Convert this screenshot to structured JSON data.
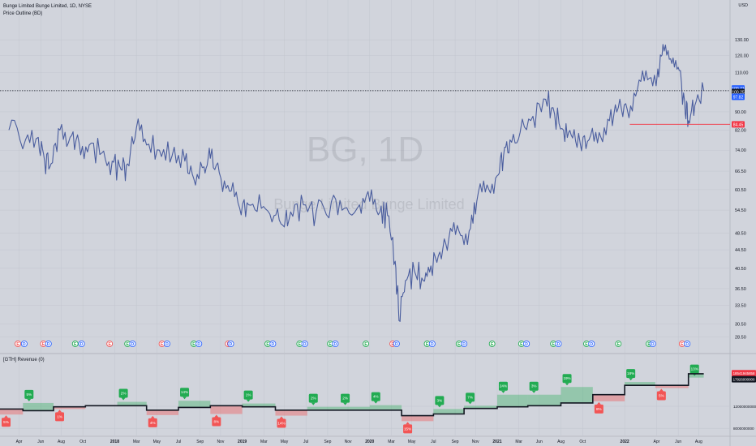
{
  "header": {
    "symbol_line": "Bunge Limited Bunge Limited, 1D, NYSE",
    "indicator_line": "Price Outline (BD)",
    "currency": "USD"
  },
  "watermark": {
    "ticker": "BG, 1D",
    "name": "Bunge Limited Bunge Limited"
  },
  "price_axis": {
    "ticks": [
      "130.00",
      "120.00",
      "110.00",
      "90.00",
      "82.00",
      "74.00",
      "66.50",
      "60.50",
      "54.50",
      "48.50",
      "44.50",
      "40.50",
      "36.50",
      "33.50",
      "30.50",
      "28.50"
    ],
    "price_tags": [
      {
        "label": "100.71",
        "color": "#2962ff",
        "kind": "price"
      },
      {
        "label": "100.25",
        "color": "#131722",
        "kind": "price"
      },
      {
        "label": "97.82",
        "color": "#2962ff",
        "kind": "price"
      },
      {
        "label": "84.45",
        "color": "#f23645",
        "kind": "price"
      }
    ]
  },
  "price_series": {
    "description": "Daily closing-price line, BG, Mar 2017 – Aug 2022",
    "points": [
      [
        2017.17,
        82
      ],
      [
        2017.3,
        78
      ],
      [
        2017.4,
        79
      ],
      [
        2017.45,
        70
      ],
      [
        2017.5,
        69
      ],
      [
        2017.57,
        82
      ],
      [
        2017.65,
        79
      ],
      [
        2017.72,
        77
      ],
      [
        2017.8,
        76
      ],
      [
        2017.9,
        73
      ],
      [
        2017.98,
        70
      ],
      [
        2018.05,
        67
      ],
      [
        2018.1,
        69
      ],
      [
        2018.17,
        83
      ],
      [
        2018.25,
        76
      ],
      [
        2018.35,
        74
      ],
      [
        2018.45,
        72
      ],
      [
        2018.55,
        70
      ],
      [
        2018.62,
        64
      ],
      [
        2018.7,
        68
      ],
      [
        2018.75,
        71
      ],
      [
        2018.82,
        66
      ],
      [
        2018.9,
        60
      ],
      [
        2018.98,
        55
      ],
      [
        2019.05,
        56
      ],
      [
        2019.15,
        55
      ],
      [
        2019.25,
        53
      ],
      [
        2019.33,
        50
      ],
      [
        2019.38,
        54
      ],
      [
        2019.48,
        56
      ],
      [
        2019.58,
        54
      ],
      [
        2019.7,
        57
      ],
      [
        2019.8,
        55
      ],
      [
        2019.92,
        56
      ],
      [
        2020.0,
        57
      ],
      [
        2020.08,
        54
      ],
      [
        2020.14,
        53
      ],
      [
        2020.2,
        42
      ],
      [
        2020.23,
        31
      ],
      [
        2020.28,
        38
      ],
      [
        2020.35,
        40
      ],
      [
        2020.42,
        38
      ],
      [
        2020.48,
        41
      ],
      [
        2020.55,
        44
      ],
      [
        2020.62,
        47
      ],
      [
        2020.7,
        49
      ],
      [
        2020.78,
        49
      ],
      [
        2020.84,
        57
      ],
      [
        2020.92,
        62
      ],
      [
        2021.0,
        65
      ],
      [
        2021.05,
        72
      ],
      [
        2021.1,
        78
      ],
      [
        2021.18,
        81
      ],
      [
        2021.28,
        88
      ],
      [
        2021.38,
        96
      ],
      [
        2021.45,
        89
      ],
      [
        2021.52,
        82
      ],
      [
        2021.58,
        80
      ],
      [
        2021.65,
        77
      ],
      [
        2021.72,
        78
      ],
      [
        2021.8,
        81
      ],
      [
        2021.88,
        86
      ],
      [
        2021.95,
        92
      ],
      [
        2022.02,
        91
      ],
      [
        2022.1,
        101
      ],
      [
        2022.18,
        106
      ],
      [
        2022.26,
        112
      ],
      [
        2022.3,
        127
      ],
      [
        2022.36,
        118
      ],
      [
        2022.42,
        113
      ],
      [
        2022.47,
        95
      ],
      [
        2022.5,
        86
      ],
      [
        2022.55,
        93
      ],
      [
        2022.62,
        100.25
      ]
    ]
  },
  "time_axis": {
    "labels": [
      {
        "t": 2017.25,
        "label": "Apr"
      },
      {
        "t": 2017.42,
        "label": "Jun"
      },
      {
        "t": 2017.58,
        "label": "Aug"
      },
      {
        "t": 2017.75,
        "label": "Oct"
      },
      {
        "t": 2018.0,
        "label": "2018",
        "bold": true
      },
      {
        "t": 2018.17,
        "label": "Mar"
      },
      {
        "t": 2018.33,
        "label": "May"
      },
      {
        "t": 2018.5,
        "label": "Jul"
      },
      {
        "t": 2018.67,
        "label": "Sep"
      },
      {
        "t": 2018.83,
        "label": "Nov"
      },
      {
        "t": 2019.0,
        "label": "2019",
        "bold": true
      },
      {
        "t": 2019.17,
        "label": "Mar"
      },
      {
        "t": 2019.33,
        "label": "May"
      },
      {
        "t": 2019.5,
        "label": "Jul"
      },
      {
        "t": 2019.67,
        "label": "Sep"
      },
      {
        "t": 2019.83,
        "label": "Nov"
      },
      {
        "t": 2020.0,
        "label": "2020",
        "bold": true
      },
      {
        "t": 2020.17,
        "label": "Mar"
      },
      {
        "t": 2020.33,
        "label": "May"
      },
      {
        "t": 2020.5,
        "label": "Jul"
      },
      {
        "t": 2020.67,
        "label": "Sep"
      },
      {
        "t": 2020.83,
        "label": "Nov"
      },
      {
        "t": 2021.0,
        "label": "2021",
        "bold": true
      },
      {
        "t": 2021.17,
        "label": "Mar"
      },
      {
        "t": 2021.33,
        "label": "Jun"
      },
      {
        "t": 2021.5,
        "label": "Aug"
      },
      {
        "t": 2021.67,
        "label": "Oct"
      },
      {
        "t": 2022.0,
        "label": "2022",
        "bold": true
      },
      {
        "t": 2022.25,
        "label": "Apr"
      },
      {
        "t": 2022.42,
        "label": "Jun"
      },
      {
        "t": 2022.58,
        "label": "Aug"
      }
    ]
  },
  "event_markers": [
    {
      "t": 2017.24,
      "label": "E",
      "kind": "earnings-miss"
    },
    {
      "t": 2017.29,
      "label": "D",
      "kind": "dividend"
    },
    {
      "t": 2017.44,
      "label": "E",
      "kind": "earnings-miss"
    },
    {
      "t": 2017.48,
      "label": "D",
      "kind": "dividend"
    },
    {
      "t": 2017.69,
      "label": "E",
      "kind": "earnings-beat"
    },
    {
      "t": 2017.74,
      "label": "D",
      "kind": "dividend"
    },
    {
      "t": 2017.96,
      "label": "E",
      "kind": "earnings-miss"
    },
    {
      "t": 2018.1,
      "label": "E",
      "kind": "earnings-beat"
    },
    {
      "t": 2018.14,
      "label": "D",
      "kind": "dividend"
    },
    {
      "t": 2018.37,
      "label": "E",
      "kind": "earnings-miss"
    },
    {
      "t": 2018.41,
      "label": "D",
      "kind": "dividend"
    },
    {
      "t": 2018.62,
      "label": "E",
      "kind": "earnings-beat"
    },
    {
      "t": 2018.66,
      "label": "D",
      "kind": "dividend"
    },
    {
      "t": 2018.89,
      "label": "E",
      "kind": "earnings-miss"
    },
    {
      "t": 2018.91,
      "label": "D",
      "kind": "dividend"
    },
    {
      "t": 2019.2,
      "label": "E",
      "kind": "earnings-beat"
    },
    {
      "t": 2019.24,
      "label": "D",
      "kind": "dividend"
    },
    {
      "t": 2019.45,
      "label": "E",
      "kind": "earnings-beat"
    },
    {
      "t": 2019.49,
      "label": "D",
      "kind": "dividend"
    },
    {
      "t": 2019.69,
      "label": "E",
      "kind": "earnings-beat"
    },
    {
      "t": 2019.73,
      "label": "D",
      "kind": "dividend"
    },
    {
      "t": 2019.97,
      "label": "E",
      "kind": "earnings-beat"
    },
    {
      "t": 2020.18,
      "label": "E",
      "kind": "earnings-miss"
    },
    {
      "t": 2020.21,
      "label": "D",
      "kind": "dividend"
    },
    {
      "t": 2020.45,
      "label": "E",
      "kind": "earnings-beat"
    },
    {
      "t": 2020.49,
      "label": "D",
      "kind": "dividend"
    },
    {
      "t": 2020.7,
      "label": "E",
      "kind": "earnings-beat"
    },
    {
      "t": 2020.74,
      "label": "D",
      "kind": "dividend"
    },
    {
      "t": 2020.96,
      "label": "E",
      "kind": "earnings-beat"
    },
    {
      "t": 2021.19,
      "label": "E",
      "kind": "earnings-beat"
    },
    {
      "t": 2021.23,
      "label": "D",
      "kind": "dividend"
    },
    {
      "t": 2021.44,
      "label": "E",
      "kind": "earnings-beat"
    },
    {
      "t": 2021.48,
      "label": "D",
      "kind": "dividend"
    },
    {
      "t": 2021.7,
      "label": "E",
      "kind": "earnings-beat"
    },
    {
      "t": 2021.74,
      "label": "D",
      "kind": "dividend"
    },
    {
      "t": 2021.95,
      "label": "E",
      "kind": "earnings-beat"
    },
    {
      "t": 2022.19,
      "label": "E",
      "kind": "earnings-beat"
    },
    {
      "t": 2022.22,
      "label": "D",
      "kind": "dividend"
    },
    {
      "t": 2022.45,
      "label": "E",
      "kind": "earnings-miss"
    },
    {
      "t": 2022.49,
      "label": "D",
      "kind": "dividend"
    }
  ],
  "revenue_panel": {
    "title": "[GTH] Revenue (0)",
    "axis_ticks": [
      "12000000000",
      "8000000000"
    ],
    "tags": [
      {
        "label": "18541945858",
        "color": "#f23645"
      },
      {
        "label": "17926000000",
        "color": "#131722"
      }
    ],
    "quarters": [
      {
        "t0": 2017.1,
        "t1": 2017.28,
        "actual": 11.5,
        "estimate": 10.5,
        "label": "5%",
        "beat": false
      },
      {
        "t0": 2017.28,
        "t1": 2017.52,
        "actual": 11.2,
        "estimate": 12.6,
        "label": "5%",
        "beat": true
      },
      {
        "t0": 2017.52,
        "t1": 2017.77,
        "actual": 11.9,
        "estimate": 11.5,
        "label": "1%",
        "beat": false
      },
      {
        "t0": 2017.77,
        "t1": 2018.02,
        "actual": 12.1,
        "estimate": 12.1,
        "label": "",
        "beat": true
      },
      {
        "t0": 2018.02,
        "t1": 2018.25,
        "actual": 12.1,
        "estimate": 12.8,
        "label": "2%",
        "beat": true
      },
      {
        "t0": 2018.25,
        "t1": 2018.5,
        "actual": 11.3,
        "estimate": 10.4,
        "label": "4%",
        "beat": false
      },
      {
        "t0": 2018.5,
        "t1": 2018.75,
        "actual": 11.8,
        "estimate": 13.0,
        "label": "14%",
        "beat": true
      },
      {
        "t0": 2018.75,
        "t1": 2019.0,
        "actual": 12.1,
        "estimate": 10.6,
        "label": "8%",
        "beat": false
      },
      {
        "t0": 2019.0,
        "t1": 2019.26,
        "actual": 11.9,
        "estimate": 12.5,
        "label": "1%",
        "beat": true
      },
      {
        "t0": 2019.26,
        "t1": 2019.51,
        "actual": 11.3,
        "estimate": 10.3,
        "label": "14%",
        "beat": false
      },
      {
        "t0": 2019.51,
        "t1": 2019.76,
        "actual": 11.3,
        "estimate": 11.9,
        "label": "2%",
        "beat": true
      },
      {
        "t0": 2019.76,
        "t1": 2020.0,
        "actual": 11.3,
        "estimate": 11.9,
        "label": "2%",
        "beat": true
      },
      {
        "t0": 2020.0,
        "t1": 2020.25,
        "actual": 11.3,
        "estimate": 12.2,
        "label": "4%",
        "beat": true
      },
      {
        "t0": 2020.25,
        "t1": 2020.5,
        "actual": 10.3,
        "estimate": 9.3,
        "label": "15%",
        "beat": false
      },
      {
        "t0": 2020.5,
        "t1": 2020.74,
        "actual": 10.6,
        "estimate": 11.5,
        "label": "3%",
        "beat": true
      },
      {
        "t0": 2020.74,
        "t1": 2021.0,
        "actual": 11.6,
        "estimate": 12.1,
        "label": "7%",
        "beat": true
      },
      {
        "t0": 2021.0,
        "t1": 2021.24,
        "actual": 11.9,
        "estimate": 14.1,
        "label": "24%",
        "beat": true
      },
      {
        "t0": 2021.24,
        "t1": 2021.5,
        "actual": 12.1,
        "estimate": 14.1,
        "label": "3%",
        "beat": true
      },
      {
        "t0": 2021.5,
        "t1": 2021.75,
        "actual": 12.6,
        "estimate": 15.5,
        "label": "19%",
        "beat": true
      },
      {
        "t0": 2021.75,
        "t1": 2022.0,
        "actual": 14.1,
        "estimate": 12.9,
        "label": "8%",
        "beat": false
      },
      {
        "t0": 2022.0,
        "t1": 2022.24,
        "actual": 15.8,
        "estimate": 16.4,
        "label": "18%",
        "beat": true
      },
      {
        "t0": 2022.24,
        "t1": 2022.5,
        "actual": 15.8,
        "estimate": 15.3,
        "label": "5%",
        "beat": false
      },
      {
        "t0": 2022.5,
        "t1": 2022.62,
        "actual": 17.9,
        "estimate": 17.2,
        "label": "13%",
        "beat": true
      }
    ]
  },
  "colors": {
    "background": "#d1d4dc",
    "price_line": "#4a5d9e",
    "beat": "#22ab52",
    "miss": "#f25555",
    "dividend": "#2962ff",
    "grid": "#c2c6cf"
  }
}
